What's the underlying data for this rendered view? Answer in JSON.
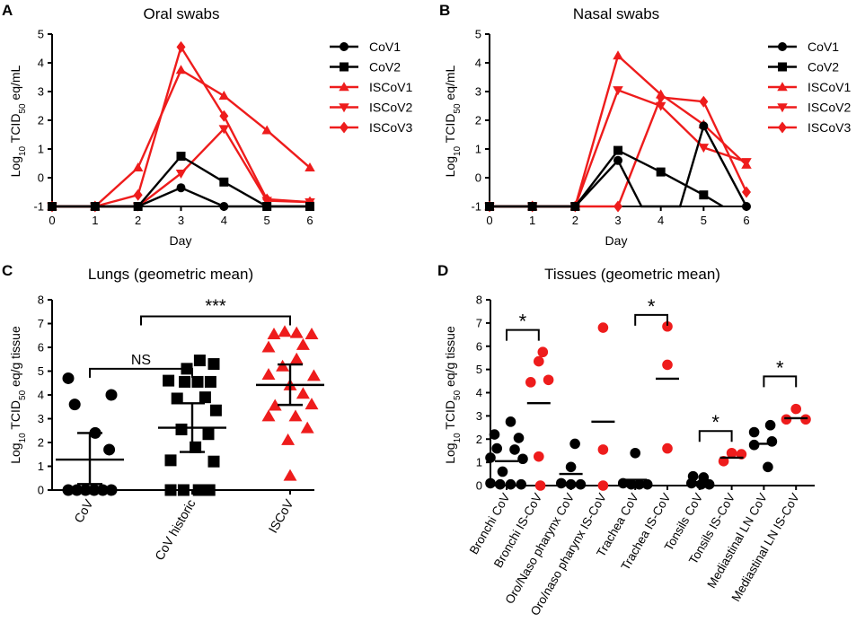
{
  "colors": {
    "cov": "#000000",
    "iscov": "#ee1c1c"
  },
  "chart_data": [
    {
      "panel": "A",
      "type": "line",
      "title": "Oral swabs",
      "xlabel": "Day",
      "ylabel_main": "Log",
      "ylabel_sub": "10",
      "ylabel_mid": " TCID",
      "ylabel_sub2": "50",
      "ylabel_tail": " eq/mL",
      "x": [
        0,
        1,
        2,
        3,
        4,
        5,
        6
      ],
      "xlim": [
        0,
        6
      ],
      "ylim": [
        -1,
        5
      ],
      "yticks": [
        -1,
        0,
        1,
        2,
        3,
        4,
        5
      ],
      "series": [
        {
          "name": "CoV1",
          "color": "#000000",
          "marker": "circle",
          "x": [
            0,
            1,
            2,
            3,
            4,
            5,
            6
          ],
          "values": [
            -1,
            -1,
            -1,
            -0.35,
            -1,
            -1,
            -1
          ]
        },
        {
          "name": "CoV2",
          "color": "#000000",
          "marker": "square",
          "x": [
            0,
            1,
            2,
            3,
            4,
            5,
            6
          ],
          "values": [
            -1,
            -1,
            -1,
            0.75,
            -0.15,
            -1,
            -1
          ]
        },
        {
          "name": "ISCoV1",
          "color": "#ee1c1c",
          "marker": "triangle-up",
          "x": [
            0,
            1,
            2,
            3,
            4,
            5,
            6
          ],
          "values": [
            -1,
            -1,
            0.35,
            3.75,
            2.85,
            1.65,
            0.35
          ]
        },
        {
          "name": "ISCoV2",
          "color": "#ee1c1c",
          "marker": "triangle-down",
          "x": [
            0,
            1,
            2,
            3,
            4,
            5,
            6
          ],
          "values": [
            -1,
            -1,
            -1,
            0.15,
            1.7,
            -0.8,
            -0.85
          ]
        },
        {
          "name": "ISCoV3",
          "color": "#ee1c1c",
          "marker": "diamond",
          "x": [
            0,
            1,
            2,
            3,
            4,
            5,
            6
          ],
          "values": [
            -1,
            -1,
            -0.6,
            4.55,
            2.15,
            -0.75,
            -0.85
          ]
        }
      ]
    },
    {
      "panel": "B",
      "type": "line",
      "title": "Nasal swabs",
      "xlabel": "Day",
      "ylabel_main": "Log",
      "ylabel_sub": "10",
      "ylabel_mid": " TCID",
      "ylabel_sub2": "50",
      "ylabel_tail": " eq/mL",
      "x": [
        0,
        1,
        2,
        3,
        4,
        5,
        6
      ],
      "xlim": [
        0,
        6
      ],
      "ylim": [
        -1,
        5
      ],
      "yticks": [
        -1,
        0,
        1,
        2,
        3,
        4,
        5
      ],
      "series": [
        {
          "name": "CoV1",
          "color": "#000000",
          "marker": "circle",
          "x": [
            0,
            1,
            2,
            3,
            3.55,
            4.45,
            5,
            6
          ],
          "values": [
            -1,
            -1,
            -1,
            0.6,
            -1,
            -1,
            1.8,
            -1
          ],
          "marked": [
            true,
            true,
            true,
            true,
            false,
            false,
            true,
            true
          ]
        },
        {
          "name": "CoV2",
          "color": "#000000",
          "marker": "square",
          "x": [
            0,
            1,
            2,
            3,
            4,
            5,
            5.45
          ],
          "values": [
            -1,
            -1,
            -1,
            0.95,
            0.2,
            -0.6,
            -1
          ],
          "marked": [
            true,
            true,
            true,
            true,
            true,
            true,
            false
          ]
        },
        {
          "name": "ISCoV1",
          "color": "#ee1c1c",
          "marker": "triangle-up",
          "x": [
            0,
            1,
            2,
            3,
            4,
            5,
            6
          ],
          "values": [
            -1,
            -1,
            -1,
            4.25,
            2.9,
            1.85,
            0.45
          ]
        },
        {
          "name": "ISCoV2",
          "color": "#ee1c1c",
          "marker": "triangle-down",
          "x": [
            0,
            1,
            2,
            3,
            4,
            5,
            6
          ],
          "values": [
            -1,
            -1,
            -1,
            3.05,
            2.5,
            1.05,
            0.55
          ]
        },
        {
          "name": "ISCoV3",
          "color": "#ee1c1c",
          "marker": "diamond",
          "x": [
            0,
            1,
            2,
            3,
            4,
            5,
            6
          ],
          "values": [
            -1,
            -1,
            -1,
            -1,
            2.8,
            2.65,
            -0.5
          ]
        }
      ]
    },
    {
      "panel": "C",
      "type": "scatter",
      "title": "Lungs (geometric mean)",
      "ylabel_main": "Log",
      "ylabel_sub": "10",
      "ylabel_mid": " TCID",
      "ylabel_sub2": "50",
      "ylabel_tail": " eq/g tissue",
      "ylim": [
        0,
        8
      ],
      "yticks": [
        0,
        1,
        2,
        3,
        4,
        5,
        6,
        7,
        8
      ],
      "categories": [
        "CoV",
        "CoV historic",
        "ISCoV"
      ],
      "groups": [
        {
          "name": "CoV",
          "color": "#000000",
          "marker": "circle",
          "mean": 1.28,
          "sem": [
            0.25,
            2.4
          ],
          "points": [
            [
              -0.2,
              4.7
            ],
            [
              0.2,
              4.0
            ],
            [
              -0.14,
              3.6
            ],
            [
              0.05,
              2.4
            ],
            [
              0.18,
              1.7
            ],
            [
              -0.2,
              0
            ],
            [
              -0.12,
              0
            ],
            [
              -0.04,
              0
            ],
            [
              0.04,
              0
            ],
            [
              0.12,
              0
            ],
            [
              0.2,
              0
            ]
          ]
        },
        {
          "name": "CoV historic",
          "color": "#000000",
          "marker": "square",
          "mean": 2.62,
          "sem": [
            1.6,
            3.65
          ],
          "points": [
            [
              0.07,
              5.45
            ],
            [
              0.2,
              5.3
            ],
            [
              -0.05,
              5.1
            ],
            [
              -0.22,
              4.6
            ],
            [
              -0.07,
              4.55
            ],
            [
              0.05,
              4.55
            ],
            [
              0.17,
              4.55
            ],
            [
              -0.14,
              3.85
            ],
            [
              0.12,
              3.9
            ],
            [
              0.22,
              3.35
            ],
            [
              -0.1,
              2.55
            ],
            [
              0.15,
              2.35
            ],
            [
              0.03,
              1.8
            ],
            [
              -0.2,
              1.25
            ],
            [
              0.2,
              1.2
            ],
            [
              -0.2,
              0
            ],
            [
              -0.08,
              0
            ],
            [
              0.06,
              0
            ],
            [
              0.16,
              0
            ]
          ]
        },
        {
          "name": "ISCoV",
          "color": "#ee1c1c",
          "marker": "triangle-up",
          "mean": 4.42,
          "sem": [
            3.58,
            5.28
          ],
          "points": [
            [
              -0.15,
              6.55
            ],
            [
              -0.05,
              6.65
            ],
            [
              0.06,
              6.6
            ],
            [
              0.2,
              6.55
            ],
            [
              -0.2,
              6.0
            ],
            [
              0.12,
              6.1
            ],
            [
              0.06,
              5.5
            ],
            [
              -0.07,
              5.2
            ],
            [
              -0.2,
              4.85
            ],
            [
              0.22,
              4.8
            ],
            [
              0.0,
              4.4
            ],
            [
              0.12,
              4.05
            ],
            [
              0.2,
              3.6
            ],
            [
              -0.14,
              3.55
            ],
            [
              -0.2,
              3.1
            ],
            [
              0.05,
              3.1
            ],
            [
              0.16,
              2.6
            ],
            [
              -0.02,
              2.1
            ],
            [
              0.0,
              0.6
            ]
          ]
        }
      ],
      "annotations": [
        {
          "text": "NS",
          "from": 0,
          "to": 1,
          "y": 5.1
        },
        {
          "text": "***",
          "from": 0.5,
          "to": 2,
          "y": 7.3
        }
      ]
    },
    {
      "panel": "D",
      "type": "scatter",
      "title": "Tissues (geometric mean)",
      "ylabel_main": "Log",
      "ylabel_sub": "10",
      "ylabel_mid": " TCID",
      "ylabel_sub2": "50",
      "ylabel_tail": " eq/g tissue",
      "ylim": [
        0,
        8
      ],
      "yticks": [
        0,
        1,
        2,
        3,
        4,
        5,
        6,
        7,
        8
      ],
      "categories": [
        "Bronchi CoV",
        "Bronchi IS-CoV",
        "Oro/Naso pharynx CoV",
        "Oro/naso pharynx IS-CoV",
        "Trachea CoV",
        "Trachea IS-CoV",
        "Tonsils CoV",
        "Tonsils IS-CoV",
        "Mediastinal LN CoV",
        "Mediastinal LN IS-CoV"
      ],
      "groups": [
        {
          "name": "Bronchi CoV",
          "color": "#000000",
          "mean": 1.05,
          "points": [
            [
              0.05,
              2.75
            ],
            [
              -0.15,
              2.2
            ],
            [
              0.15,
              2.05
            ],
            [
              -0.12,
              1.6
            ],
            [
              0.1,
              1.55
            ],
            [
              -0.2,
              1.2
            ],
            [
              0.2,
              1.15
            ],
            [
              -0.05,
              0.6
            ],
            [
              -0.2,
              0.1
            ],
            [
              -0.08,
              0.05
            ],
            [
              0.05,
              0.05
            ],
            [
              0.18,
              0.05
            ]
          ]
        },
        {
          "name": "Bronchi IS-CoV",
          "color": "#ee1c1c",
          "mean": 3.55,
          "points": [
            [
              0.05,
              5.75
            ],
            [
              0.0,
              5.35
            ],
            [
              0.12,
              4.55
            ],
            [
              -0.1,
              4.45
            ],
            [
              0.0,
              1.25
            ],
            [
              0.02,
              0.0
            ]
          ]
        },
        {
          "name": "Oro/Naso pharynx CoV",
          "color": "#000000",
          "mean": 0.5,
          "points": [
            [
              0.05,
              1.8
            ],
            [
              0.0,
              0.8
            ],
            [
              -0.12,
              0.1
            ],
            [
              0.0,
              0.05
            ],
            [
              0.12,
              0.05
            ]
          ]
        },
        {
          "name": "Oro/naso pharynx IS-CoV",
          "color": "#ee1c1c",
          "mean": 2.75,
          "points": [
            [
              0.0,
              6.8
            ],
            [
              0.0,
              1.55
            ],
            [
              0.0,
              0.0
            ]
          ]
        },
        {
          "name": "Trachea CoV",
          "color": "#000000",
          "mean": 0.25,
          "points": [
            [
              0.0,
              1.4
            ],
            [
              -0.15,
              0.1
            ],
            [
              -0.05,
              0.05
            ],
            [
              0.05,
              0.05
            ],
            [
              0.15,
              0.05
            ]
          ]
        },
        {
          "name": "Trachea IS-CoV",
          "color": "#ee1c1c",
          "mean": 4.6,
          "points": [
            [
              0.0,
              6.85
            ],
            [
              0.0,
              5.2
            ],
            [
              0.0,
              1.6
            ]
          ]
        },
        {
          "name": "Tonsils CoV",
          "color": "#000000",
          "mean": 0.15,
          "points": [
            [
              -0.08,
              0.4
            ],
            [
              0.05,
              0.35
            ],
            [
              -0.1,
              0.1
            ],
            [
              0.02,
              0.05
            ],
            [
              0.12,
              0.05
            ]
          ]
        },
        {
          "name": "Tonsils IS-CoV",
          "color": "#ee1c1c",
          "mean": 1.2,
          "points": [
            [
              0.0,
              1.4
            ],
            [
              0.12,
              1.35
            ],
            [
              -0.1,
              1.05
            ]
          ]
        },
        {
          "name": "Mediastinal LN CoV",
          "color": "#000000",
          "mean": 1.8,
          "points": [
            [
              0.08,
              2.6
            ],
            [
              -0.12,
              2.3
            ],
            [
              0.1,
              1.9
            ],
            [
              0.05,
              0.8
            ],
            [
              -0.12,
              1.75
            ]
          ]
        },
        {
          "name": "Mediastinal LN IS-CoV",
          "color": "#ee1c1c",
          "mean": 2.9,
          "points": [
            [
              0.0,
              3.3
            ],
            [
              -0.12,
              2.85
            ],
            [
              0.12,
              2.85
            ]
          ]
        }
      ],
      "annotations": [
        {
          "text": "*",
          "from": 0,
          "to": 1,
          "y": 6.7
        },
        {
          "text": "*",
          "from": 4,
          "to": 5,
          "y": 7.35
        },
        {
          "text": "*",
          "from": 6,
          "to": 7,
          "y": 2.35
        },
        {
          "text": "*",
          "from": 8,
          "to": 9,
          "y": 4.7
        }
      ]
    }
  ]
}
